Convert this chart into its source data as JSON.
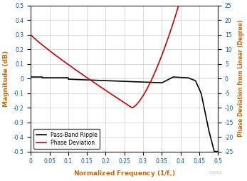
{
  "xlabel": "Normalized Frequency (1/f_s)",
  "ylabel_left": "Magnitude (dB)",
  "ylabel_right": "Phase Deviation from Linear (Degree)",
  "xlim": [
    0,
    0.5
  ],
  "ylim_left": [
    -0.5,
    0.5
  ],
  "ylim_right": [
    -25,
    25
  ],
  "xticks": [
    0,
    0.05,
    0.1,
    0.15,
    0.2,
    0.25,
    0.3,
    0.35,
    0.4,
    0.45,
    0.5
  ],
  "yticks_left": [
    -0.5,
    -0.4,
    -0.3,
    -0.2,
    -0.1,
    0.0,
    0.1,
    0.2,
    0.3,
    0.4,
    0.5
  ],
  "yticks_right": [
    -25,
    -20,
    -15,
    -10,
    -5,
    0,
    5,
    10,
    15,
    20,
    25
  ],
  "ripple_color": "#000000",
  "phase_color": "#cc0000",
  "legend_labels": [
    "Pass-Band Ripple",
    "Phase Deviation"
  ],
  "axis_label_color": "#cc6600",
  "tick_label_color": "#0055aa",
  "background_color": "#ffffff",
  "grid_color": "#cccccc",
  "linewidth": 1.2,
  "watermark": "Q3053"
}
